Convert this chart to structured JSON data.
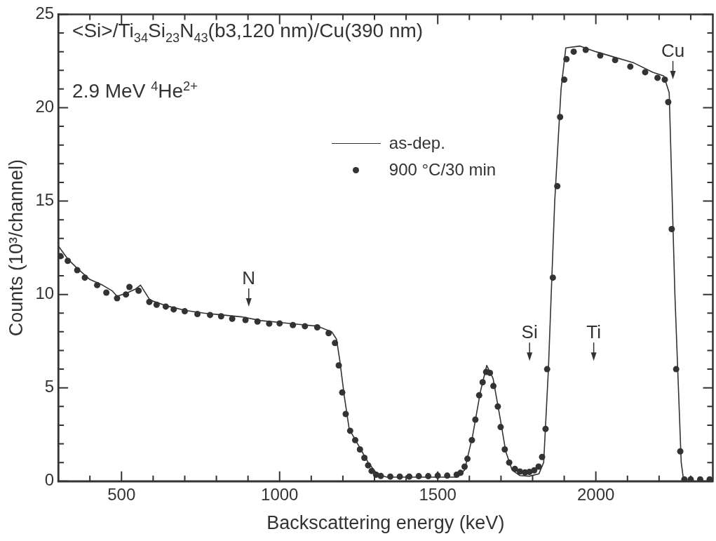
{
  "chart_data": {
    "type": "scatter",
    "xlabel": "Backscattering energy (keV)",
    "ylabel": "Counts (10³/channel)",
    "xlim": [
      300,
      2370
    ],
    "xticks": [
      {
        "value": 400,
        "label": null
      },
      500,
      {
        "value": 600,
        "label": null
      },
      {
        "value": 700,
        "label": null
      },
      {
        "value": 800,
        "label": null
      },
      {
        "value": 900,
        "label": null
      },
      1000,
      {
        "value": 1100,
        "label": null
      },
      {
        "value": 1200,
        "label": null
      },
      {
        "value": 1300,
        "label": null
      },
      {
        "value": 1400,
        "label": null
      },
      1500,
      {
        "value": 1600,
        "label": null
      },
      {
        "value": 1700,
        "label": null
      },
      {
        "value": 1800,
        "label": null
      },
      {
        "value": 1900,
        "label": null
      },
      2000,
      {
        "value": 2100,
        "label": null
      },
      {
        "value": 2200,
        "label": null
      },
      {
        "value": 2300,
        "label": null
      }
    ],
    "ylim": [
      0,
      25
    ],
    "yticks": [
      0,
      {
        "value": 1,
        "label": null
      },
      {
        "value": 2,
        "label": null
      },
      {
        "value": 3,
        "label": null
      },
      {
        "value": 4,
        "label": null
      },
      5,
      {
        "value": 6,
        "label": null
      },
      {
        "value": 7,
        "label": null
      },
      {
        "value": 8,
        "label": null
      },
      {
        "value": 9,
        "label": null
      },
      10,
      {
        "value": 11,
        "label": null
      },
      {
        "value": 12,
        "label": null
      },
      {
        "value": 13,
        "label": null
      },
      {
        "value": 14,
        "label": null
      },
      15,
      {
        "value": 16,
        "label": null
      },
      {
        "value": 17,
        "label": null
      },
      {
        "value": 18,
        "label": null
      },
      {
        "value": 19,
        "label": null
      },
      20,
      {
        "value": 21,
        "label": null
      },
      {
        "value": 22,
        "label": null
      },
      {
        "value": 23,
        "label": null
      },
      {
        "value": 24,
        "label": null
      },
      25
    ],
    "grid": false,
    "legend": "top",
    "series": [
      {
        "name": "as-dep.",
        "type": "line",
        "marker": "none",
        "color": "#333333",
        "x": [
          300,
          330,
          360,
          400,
          440,
          470,
          486,
          520,
          545,
          560,
          590,
          640,
          700,
          760,
          820,
          880,
          940,
          1000,
          1060,
          1120,
          1165,
          1180,
          1190,
          1205,
          1220,
          1250,
          1280,
          1310,
          1340,
          1560,
          1585,
          1610,
          1635,
          1655,
          1675,
          1695,
          1715,
          1735,
          1760,
          1790,
          1820,
          1835,
          1850,
          1870,
          1890,
          1905,
          1950,
          2000,
          2060,
          2120,
          2180,
          2215,
          2232,
          2250,
          2270,
          2278
        ],
        "values": [
          12.6,
          11.9,
          11.4,
          10.8,
          10.5,
          10.2,
          9.9,
          10.1,
          10.3,
          10.5,
          9.7,
          9.4,
          9.15,
          9.0,
          8.9,
          8.8,
          8.6,
          8.5,
          8.4,
          8.3,
          8.0,
          7.6,
          6.5,
          4.5,
          2.8,
          1.9,
          1.0,
          0.35,
          0.22,
          0.22,
          0.6,
          2.4,
          4.8,
          6.2,
          5.5,
          3.6,
          1.6,
          0.6,
          0.3,
          0.27,
          0.4,
          1.0,
          6.0,
          15.0,
          21.0,
          23.2,
          23.3,
          23.0,
          22.7,
          22.4,
          21.9,
          21.7,
          20.8,
          10.0,
          1.0,
          0.0
        ]
      },
      {
        "name": "900 °C/30 min",
        "marker": "circle",
        "color": "#333333",
        "x": [
          307,
          330,
          360,
          384,
          423,
          452,
          486,
          514,
          525,
          554,
          588,
          611,
          640,
          665,
          700,
          740,
          780,
          815,
          850,
          892,
          930,
          967,
          1000,
          1042,
          1080,
          1119,
          1155,
          1175,
          1187,
          1198,
          1209,
          1223,
          1239,
          1254,
          1268,
          1280,
          1291,
          1305,
          1320,
          1350,
          1380,
          1410,
          1440,
          1470,
          1500,
          1530,
          1560,
          1572,
          1585,
          1594,
          1608,
          1619,
          1631,
          1642,
          1653,
          1665,
          1676,
          1690,
          1699,
          1712,
          1726,
          1744,
          1760,
          1776,
          1790,
          1805,
          1819,
          1830,
          1841,
          1846,
          1864,
          1878,
          1887,
          1900,
          1907,
          1930,
          1968,
          2014,
          2061,
          2109,
          2156,
          2195,
          2218,
          2229,
          2240,
          2254,
          2267,
          2280,
          2300,
          2330,
          2360
        ],
        "values": [
          12.05,
          11.8,
          11.3,
          10.9,
          10.5,
          10.1,
          9.8,
          10.0,
          10.4,
          10.2,
          9.6,
          9.45,
          9.35,
          9.2,
          9.1,
          8.95,
          8.9,
          8.83,
          8.7,
          8.63,
          8.55,
          8.44,
          8.45,
          8.36,
          8.3,
          8.24,
          7.93,
          7.4,
          6.2,
          4.75,
          3.6,
          2.7,
          2.2,
          1.7,
          1.25,
          0.85,
          0.55,
          0.35,
          0.28,
          0.25,
          0.25,
          0.25,
          0.27,
          0.27,
          0.3,
          0.3,
          0.35,
          0.45,
          0.78,
          1.2,
          2.2,
          3.3,
          4.6,
          5.3,
          5.85,
          5.8,
          5.1,
          4.0,
          2.9,
          1.7,
          1.0,
          0.66,
          0.52,
          0.47,
          0.5,
          0.58,
          0.78,
          1.3,
          2.8,
          6.0,
          10.9,
          15.8,
          19.5,
          21.5,
          22.6,
          23.0,
          23.1,
          22.8,
          22.55,
          22.2,
          21.9,
          21.6,
          21.5,
          20.3,
          13.5,
          6.0,
          1.6,
          0.1,
          0.1,
          0.1,
          0.1
        ]
      }
    ],
    "annotations": [
      "<Si>/Ti$_{34}$Si$_{23}$N$_{43}$(b3,120 nm)/Cu(390 nm)",
      "2.9 MeV $^{4}$He$^{2+}$",
      "N",
      "Si",
      "Ti",
      "Cu"
    ]
  }
}
